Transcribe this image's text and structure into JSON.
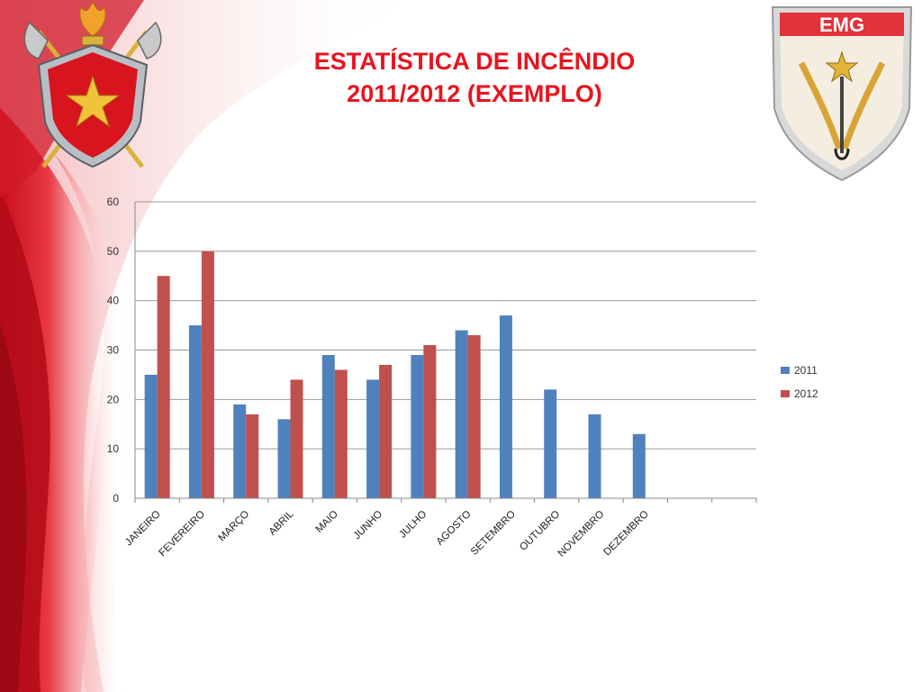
{
  "slide": {
    "title_line1": "ESTATÍSTICA DE INCÊNDIO",
    "title_line2": "2011/2012 (EXEMPLO)",
    "right_logo_text": "EMG"
  },
  "colors": {
    "title": "#e8141e",
    "series_2011": "#4f81bd",
    "series_2012": "#c0504d",
    "gridline": "#999999",
    "curtain": "#e8141e"
  },
  "icons": {
    "left_logo": "firefighter-coat-of-arms-icon",
    "right_logo": "emg-shield-icon"
  },
  "chart_data": {
    "type": "bar",
    "title": "",
    "xlabel": "",
    "ylabel": "",
    "ylim": [
      0,
      60
    ],
    "yticks": [
      0,
      10,
      20,
      30,
      40,
      50,
      60
    ],
    "grid": true,
    "legend_position": "right",
    "categories": [
      "JANEIRO",
      "FEVEREIRO",
      "MARÇO",
      "ABRIL",
      "MAIO",
      "JUNHO",
      "JULHO",
      "AGOSTO",
      "SETEMBRO",
      "OUTUBRO",
      "NOVEMBRO",
      "DEZEMBRO",
      "",
      ""
    ],
    "series": [
      {
        "name": "2011",
        "color": "#4f81bd",
        "values": [
          25,
          35,
          19,
          16,
          29,
          24,
          29,
          34,
          37,
          22,
          17,
          13,
          null,
          null
        ]
      },
      {
        "name": "2012",
        "color": "#c0504d",
        "values": [
          45,
          50,
          17,
          24,
          26,
          27,
          31,
          33,
          null,
          null,
          null,
          null,
          null,
          null
        ]
      }
    ]
  }
}
